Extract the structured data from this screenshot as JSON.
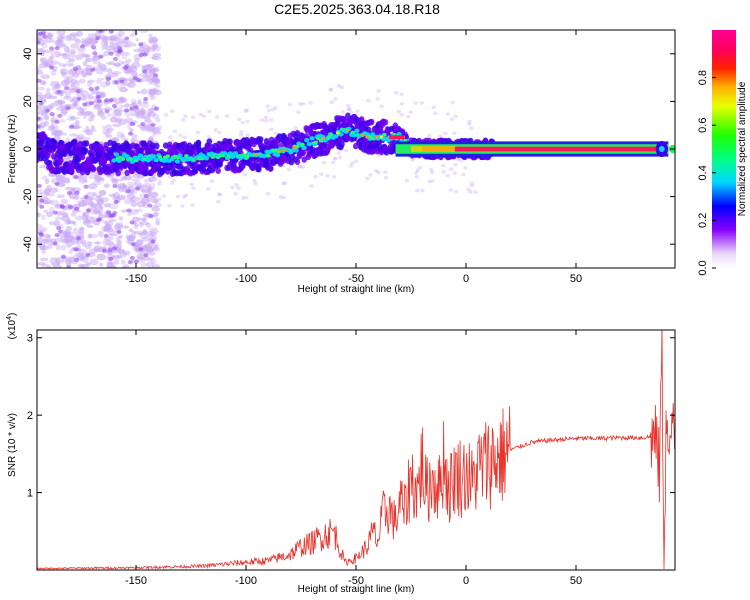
{
  "title": "C2E5.2025.363.04.18.R18",
  "chart_data": [
    {
      "type": "heatmap",
      "xlabel": "Height of straight line (km)",
      "ylabel": "Frequency (Hz)",
      "xlim": [
        -195,
        95
      ],
      "ylim": [
        -50,
        50
      ],
      "xticks": [
        -150,
        -100,
        -50,
        0,
        50
      ],
      "yticks": [
        -40,
        -20,
        0,
        20,
        40
      ],
      "ridge": {
        "x": [
          -190,
          -150,
          -130,
          -110,
          -90,
          -80,
          -70,
          -60,
          -55,
          -50,
          -45,
          -40,
          -35,
          -30,
          -27,
          -25,
          -22,
          -15,
          -5,
          0,
          10,
          40,
          80,
          90,
          95
        ],
        "freq": [
          -3,
          -4,
          -4,
          -3,
          -2,
          0,
          3,
          6,
          8,
          7,
          5,
          5,
          5,
          5,
          2,
          1,
          0,
          0,
          0,
          0,
          0,
          0,
          0,
          0,
          0
        ]
      },
      "colorbar": {
        "label": "Normalized spectral amplitude",
        "ticks": [
          0.0,
          0.2,
          0.4,
          0.6,
          0.8
        ],
        "range": [
          0,
          1
        ]
      }
    },
    {
      "type": "line",
      "xlabel": "Height of straight line (km)",
      "ylabel": "SNR (10 * v/v)",
      "scale_label": "(x10",
      "scale_exp": "4",
      "scale_close": ")",
      "xlim": [
        -195,
        95
      ],
      "ylim": [
        0,
        3.1
      ],
      "xticks": [
        -150,
        -100,
        -50,
        0,
        50
      ],
      "yticks": [
        1,
        2,
        3
      ],
      "color": "#e8322a",
      "series": [
        {
          "x": [
            -195,
            -150,
            -120,
            -100,
            -90,
            -80,
            -75,
            -70,
            -65,
            -60,
            -57,
            -55,
            -50,
            -45,
            -42,
            -40,
            -38,
            -35,
            -32,
            -30,
            -28,
            -25,
            -22,
            -20,
            -18,
            -15,
            -12,
            -10,
            -8,
            -5,
            -2,
            0,
            3,
            5,
            8,
            10,
            15,
            20,
            25,
            30,
            40,
            50,
            60,
            70,
            80,
            85,
            87,
            88,
            89,
            90,
            91,
            92,
            93,
            94,
            95
          ],
          "values": [
            0.02,
            0.03,
            0.05,
            0.1,
            0.12,
            0.2,
            0.3,
            0.35,
            0.45,
            0.5,
            0.25,
            0.1,
            0.15,
            0.3,
            0.5,
            0.35,
            0.7,
            0.8,
            0.6,
            0.9,
            0.75,
            1.2,
            1.0,
            1.4,
            1.0,
            1.2,
            1.05,
            1.5,
            1.0,
            1.25,
            1.2,
            1.25,
            1.1,
            1.3,
            1.35,
            1.4,
            1.45,
            1.55,
            1.6,
            1.65,
            1.68,
            1.7,
            1.7,
            1.71,
            1.71,
            1.72,
            1.6,
            1.2,
            3.1,
            0.2,
            1.9,
            1.6,
            1.3,
            2.1,
            1.7
          ]
        }
      ]
    }
  ]
}
